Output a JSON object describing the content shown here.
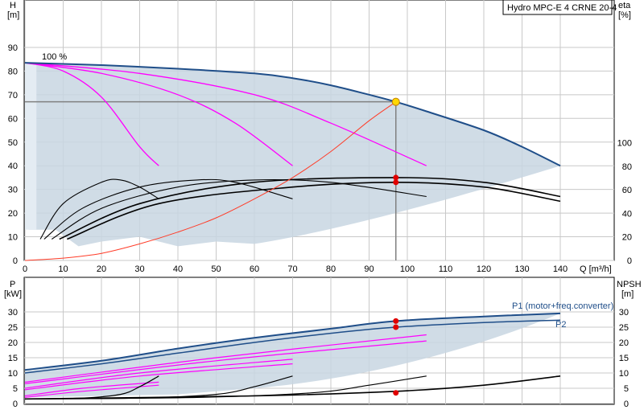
{
  "chart_data": [
    {
      "type": "line",
      "panel": "head-curve",
      "title": "Hydro MPC-E 4 CRNE 20-4",
      "ylabel_left": "H",
      "ylabel_left_unit": "[m]",
      "ylabel_right": "eta",
      "ylabel_right_unit": "[%]",
      "xlabel": "Q [m³/h]",
      "xlim": [
        0,
        145
      ],
      "ylim": [
        0,
        100
      ],
      "x_ticks": [
        0,
        10,
        20,
        30,
        40,
        50,
        60,
        70,
        80,
        90,
        100,
        110,
        120,
        130,
        140
      ],
      "y_ticks_left": [
        0,
        10,
        20,
        30,
        40,
        50,
        60,
        70,
        80,
        90
      ],
      "y_ticks_right": [
        0,
        20,
        40,
        60,
        80,
        100
      ],
      "grid": true,
      "annotations": [
        {
          "text": "100 %"
        }
      ],
      "operating_point": {
        "x": 97,
        "y": 67
      },
      "colors": {
        "max_curve": "#1f4e89",
        "speed_curves": "#ff00ff",
        "system_curve": "#ff3c28",
        "envelope": "#c8d6e2",
        "efficiency": "#000000",
        "op_point": "#ffd700"
      },
      "max_curve": {
        "x": [
          0,
          20,
          40,
          60,
          70,
          80,
          90,
          97,
          105,
          120,
          130,
          140
        ],
        "y": [
          83.5,
          82.5,
          81,
          79,
          77,
          74,
          70,
          67,
          63,
          55,
          48,
          40
        ]
      },
      "speed_curves": [
        {
          "x": [
            0,
            10,
            20,
            30,
            35
          ],
          "y": [
            83.5,
            80,
            69,
            48,
            40
          ]
        },
        {
          "x": [
            0,
            20,
            40,
            55,
            70
          ],
          "y": [
            83.5,
            79,
            70,
            58,
            40
          ]
        },
        {
          "x": [
            0,
            30,
            60,
            80,
            105
          ],
          "y": [
            83.5,
            79,
            70,
            58,
            40
          ]
        }
      ],
      "system_curve": {
        "x": [
          0,
          10,
          20,
          30,
          40,
          50,
          60,
          70,
          80,
          90,
          97
        ],
        "y": [
          0,
          1,
          3,
          7,
          12,
          18,
          26,
          35,
          46,
          59,
          67
        ]
      },
      "efficiency_curves": [
        {
          "x": [
            4,
            10,
            20,
            25,
            30,
            35
          ],
          "y": [
            9,
            24,
            33,
            34,
            31,
            26
          ]
        },
        {
          "x": [
            5,
            15,
            30,
            45,
            55,
            70
          ],
          "y": [
            9,
            22,
            31,
            34,
            33,
            26
          ]
        },
        {
          "x": [
            7,
            20,
            40,
            60,
            80,
            105
          ],
          "y": [
            9,
            22,
            31,
            34,
            33,
            27
          ]
        },
        {
          "x": [
            9,
            30,
            60,
            97,
            120,
            140
          ],
          "y": [
            9,
            24,
            33,
            35,
            33,
            27
          ]
        },
        {
          "x": [
            11,
            35,
            70,
            97,
            120,
            140
          ],
          "y": [
            9,
            24,
            31,
            33,
            31,
            25
          ]
        }
      ],
      "efficiency_points": [
        {
          "x": 97,
          "y": 35
        },
        {
          "x": 97,
          "y": 33
        }
      ]
    },
    {
      "type": "line",
      "panel": "power-npsh",
      "ylabel_left": "P",
      "ylabel_left_unit": "[kW]",
      "ylabel_right": "NPSH",
      "ylabel_right_unit": "[m]",
      "xlim": [
        0,
        145
      ],
      "ylim": [
        0,
        35
      ],
      "y_ticks": [
        0,
        5,
        10,
        15,
        20,
        25,
        30
      ],
      "grid": true,
      "series": [
        {
          "name": "P1 (motor+freq.converter)",
          "x": [
            0,
            20,
            40,
            60,
            80,
            97,
            120,
            140
          ],
          "y": [
            11,
            14,
            18,
            21.5,
            24.5,
            27,
            28.5,
            29.5
          ]
        },
        {
          "name": "P2",
          "x": [
            0,
            20,
            40,
            60,
            80,
            97,
            120,
            140
          ],
          "y": [
            10,
            13,
            16.5,
            20,
            23,
            25,
            26.5,
            27.3
          ]
        }
      ],
      "speed_power_curves": [
        {
          "x": [
            0,
            15,
            35
          ],
          "y": [
            2.5,
            5,
            7
          ]
        },
        {
          "x": [
            0,
            15,
            35
          ],
          "y": [
            2,
            4,
            6
          ]
        },
        {
          "x": [
            0,
            30,
            70
          ],
          "y": [
            5,
            10,
            14.5
          ]
        },
        {
          "x": [
            0,
            30,
            70
          ],
          "y": [
            4.5,
            9,
            13
          ]
        },
        {
          "x": [
            0,
            50,
            105
          ],
          "y": [
            7,
            15,
            22.5
          ]
        },
        {
          "x": [
            0,
            50,
            105
          ],
          "y": [
            6.5,
            14,
            20.5
          ]
        }
      ],
      "npsh_curves": [
        {
          "x": [
            0,
            15,
            25,
            30,
            35
          ],
          "y": [
            1.5,
            1.8,
            3,
            5.5,
            9
          ]
        },
        {
          "x": [
            0,
            30,
            50,
            60,
            70
          ],
          "y": [
            1.5,
            1.8,
            3,
            5.5,
            9
          ]
        },
        {
          "x": [
            0,
            45,
            75,
            90,
            105
          ],
          "y": [
            1.5,
            2,
            3.5,
            6,
            9
          ]
        },
        {
          "x": [
            0,
            60,
            97,
            120,
            140
          ],
          "y": [
            1.5,
            2.5,
            4,
            6,
            9
          ]
        }
      ],
      "points": [
        {
          "x": 97,
          "y": 27
        },
        {
          "x": 97,
          "y": 25
        },
        {
          "x": 97,
          "y": 3.5
        }
      ]
    }
  ]
}
